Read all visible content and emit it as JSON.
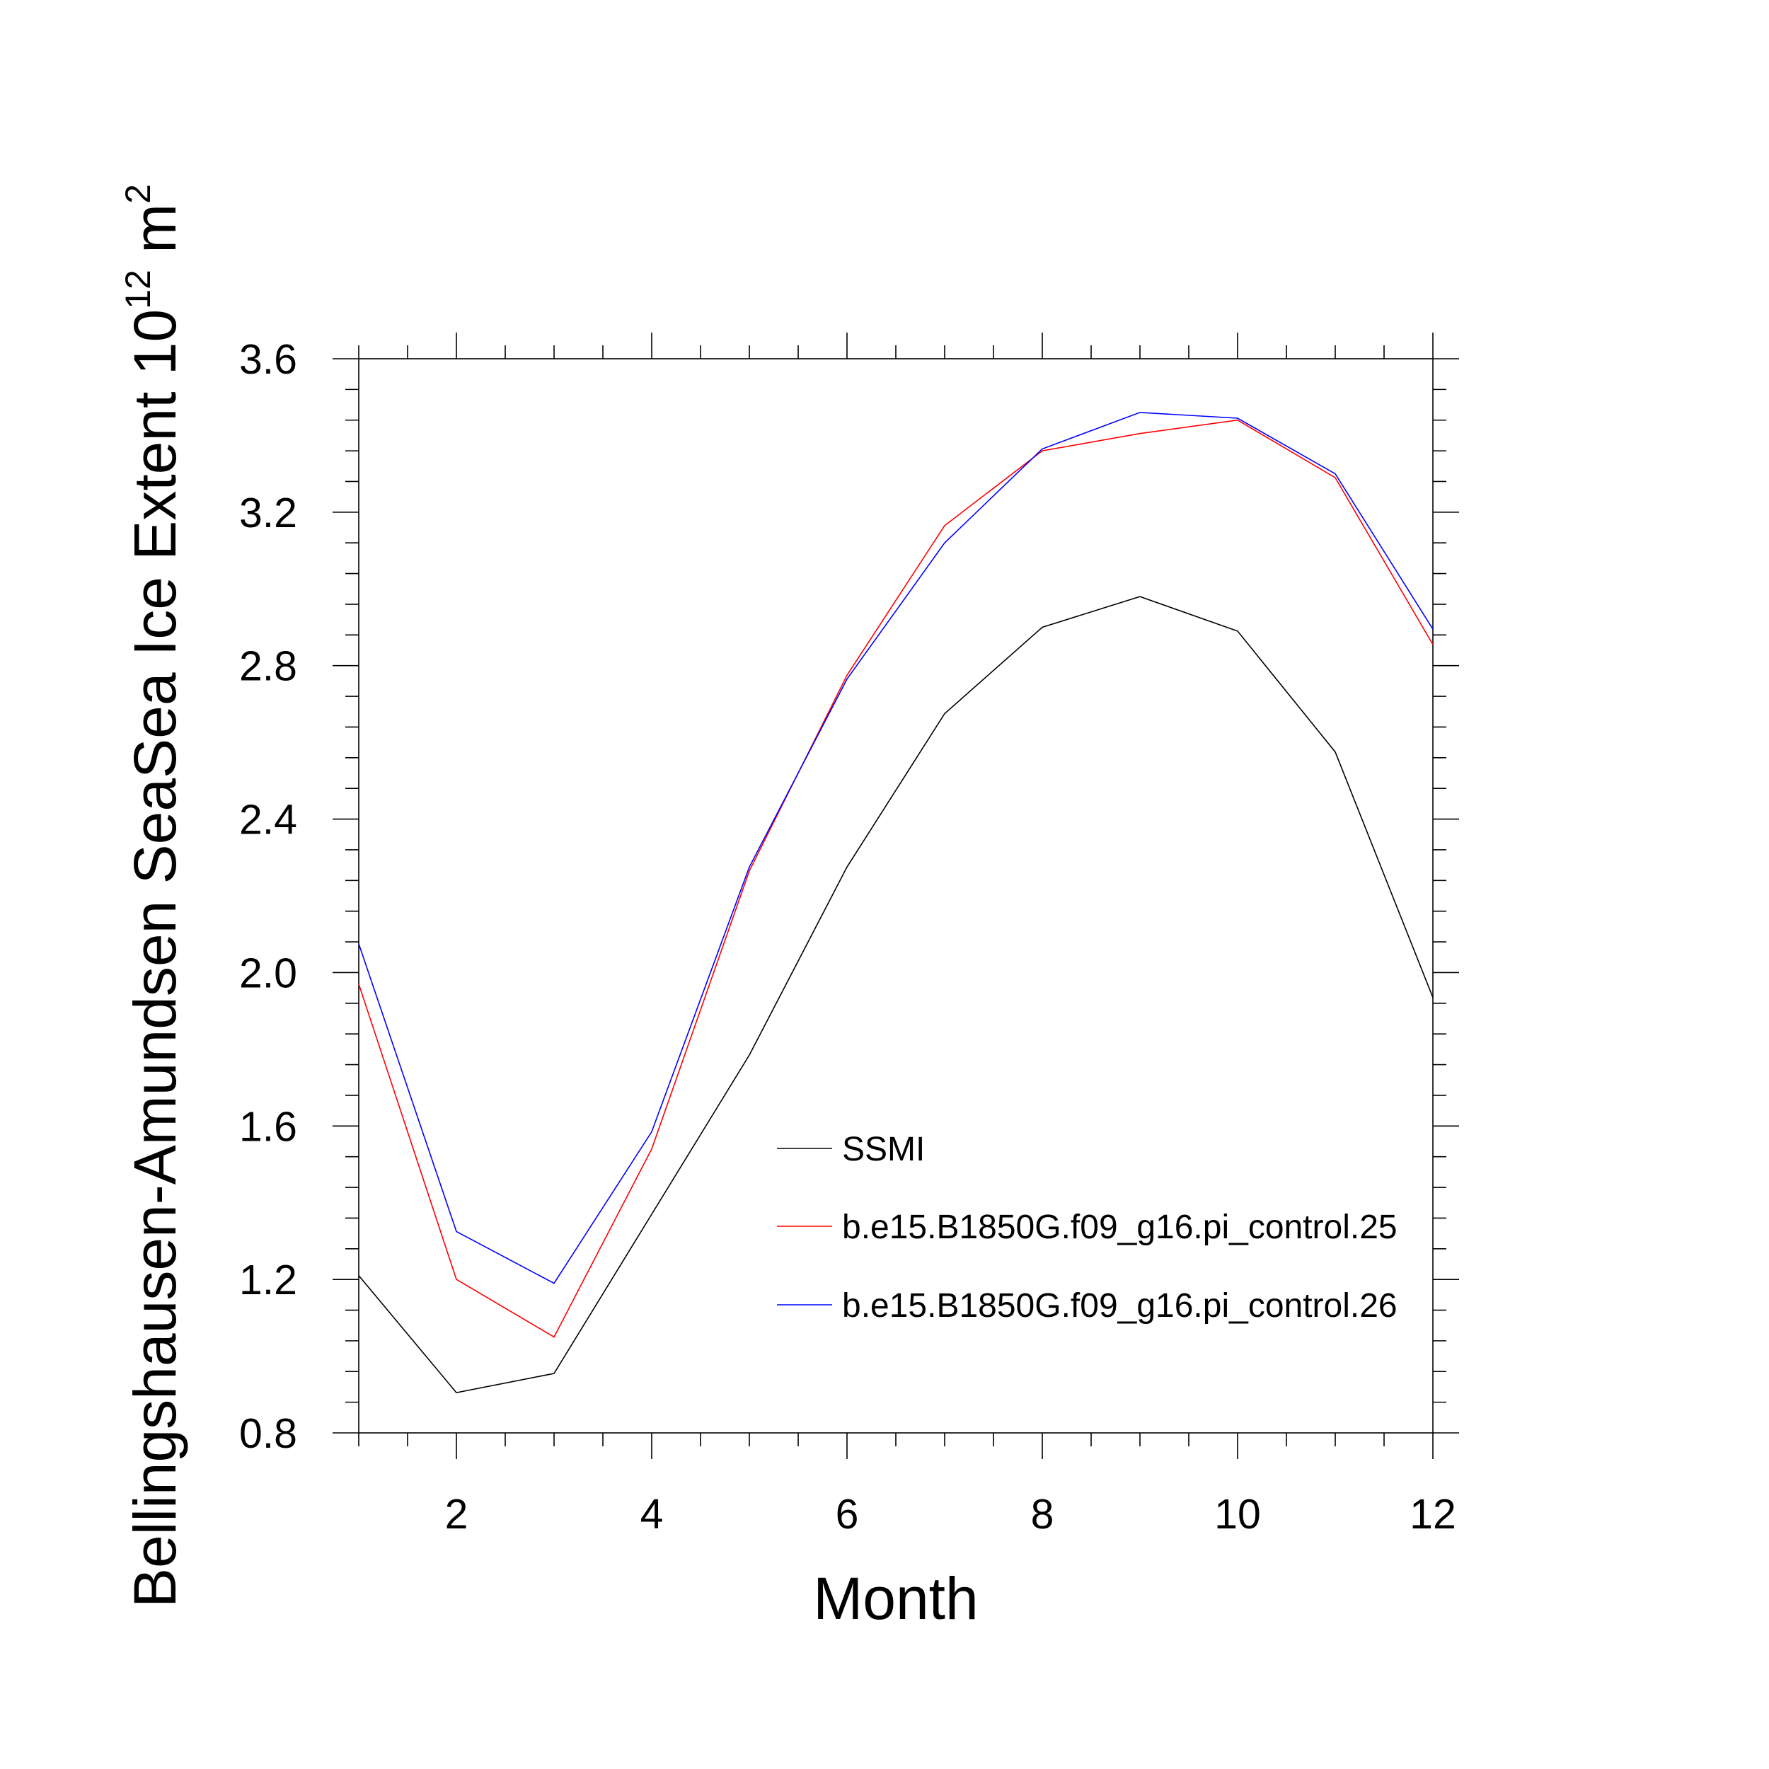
{
  "chart_data": {
    "type": "line",
    "title": "",
    "xlabel": "Month",
    "ylabel": {
      "prefix": "Bellingshausen-Amundsen SeaSea Ice Extent 10",
      "exponent": "12",
      "unit": "m",
      "unit_exponent": "2"
    },
    "xlim": [
      1,
      12
    ],
    "ylim": [
      0.8,
      3.6
    ],
    "x_ticks": [
      2,
      4,
      6,
      8,
      10,
      12
    ],
    "x_tick_labels": [
      "2",
      "4",
      "6",
      "8",
      "10",
      "12"
    ],
    "y_ticks": [
      0.8,
      1.2,
      1.6,
      2.0,
      2.4,
      2.8,
      3.2,
      3.6
    ],
    "y_tick_labels": [
      "0.8",
      "1.2",
      "1.6",
      "2.0",
      "2.4",
      "2.8",
      "3.2",
      "3.6"
    ],
    "grid": false,
    "legend_position": "lower-right",
    "x": [
      1,
      2,
      3,
      4,
      5,
      6,
      7,
      8,
      9,
      10,
      11,
      12
    ],
    "series": [
      {
        "name": "SSMI",
        "color": "#000000",
        "values": [
          1.21,
          0.905,
          0.955,
          1.37,
          1.785,
          2.275,
          2.675,
          2.9,
          2.98,
          2.89,
          2.575,
          1.935
        ]
      },
      {
        "name": "b.e15.B1850G.f09_g16.pi_control.25",
        "color": "#ff0000",
        "values": [
          1.97,
          1.2,
          1.05,
          1.54,
          2.265,
          2.775,
          3.165,
          3.36,
          3.405,
          3.44,
          3.29,
          2.855
        ]
      },
      {
        "name": "b.e15.B1850G.f09_g16.pi_control.26",
        "color": "#0000ff",
        "values": [
          2.075,
          1.325,
          1.19,
          1.585,
          2.275,
          2.765,
          3.12,
          3.365,
          3.46,
          3.445,
          3.3,
          2.895
        ]
      }
    ]
  }
}
